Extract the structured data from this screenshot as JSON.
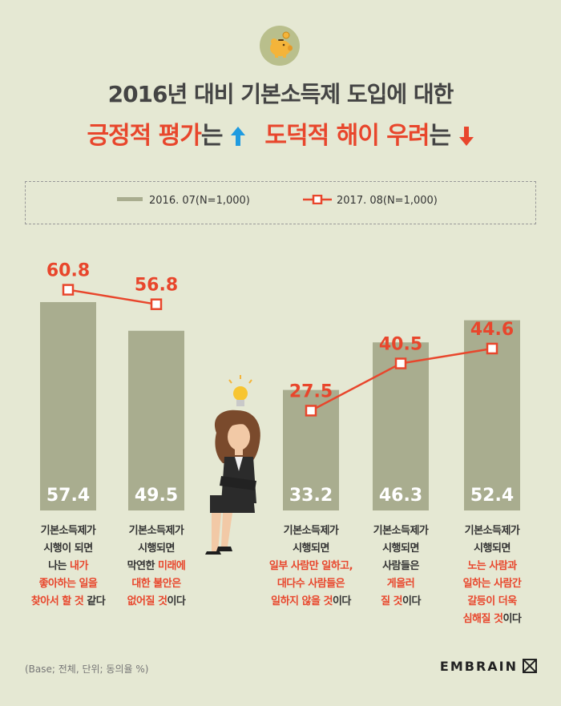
{
  "title_line1": "2016년 대비 기본소득제 도입에 대한",
  "title_line2": {
    "part1": "긍정적 평가",
    "part2": "는",
    "part3": "도덕적 해이 우려",
    "part4": "는"
  },
  "legend": {
    "bar": "2016. 07(N=1,000)",
    "line": "2017. 08(N=1,000)"
  },
  "colors": {
    "bar": "#a9ad8f",
    "line": "#e8462c",
    "background": "#e5e8d3"
  },
  "chart_data": {
    "type": "bar",
    "categories": [
      "기본소득제가 시행이 되면 나는 내가 좋아하는 일을 찾아서 할 것 같다",
      "기본소득제가 시행되면 막연한 미래에 대한 불안은 없어질 것이다",
      "기본소득제가 시행되면 일부 사람만 일하고, 대다수 사람들은 일하지 않을 것이다",
      "기본소득제가 시행되면 사람들은 게을러 질 것이다",
      "기본소득제가 시행되면 노는 사람과 일하는 사람간 갈등이 더욱 심해질 것이다"
    ],
    "series": [
      {
        "name": "2016. 07(N=1,000)",
        "type": "bar",
        "values": [
          57.4,
          49.5,
          33.2,
          46.3,
          52.4
        ],
        "labels": [
          "57.4",
          "49.5",
          "33.2",
          "46.3",
          "52.4"
        ]
      },
      {
        "name": "2017. 08(N=1,000)",
        "type": "line",
        "values": [
          60.8,
          56.8,
          27.5,
          40.5,
          44.6
        ],
        "labels": [
          "60.8",
          "56.8",
          "27.5",
          "40.5",
          "44.6"
        ]
      }
    ],
    "groups": [
      [
        0,
        1
      ],
      [
        2,
        3,
        4
      ]
    ],
    "unit": "%"
  },
  "captions": [
    [
      [
        [
          "기본소득제가",
          false
        ]
      ],
      [
        [
          "시행이 되면",
          false
        ]
      ],
      [
        [
          "나는 ",
          false
        ],
        [
          "내가",
          true
        ]
      ],
      [
        [
          "좋아하는 일을",
          true
        ]
      ],
      [
        [
          "찾아서 할 것",
          true
        ],
        [
          " 같다",
          false
        ]
      ]
    ],
    [
      [
        [
          "기본소득제가",
          false
        ]
      ],
      [
        [
          "시행되면",
          false
        ]
      ],
      [
        [
          "막연한 ",
          false
        ],
        [
          "미래에",
          true
        ]
      ],
      [
        [
          "대한 불안은",
          true
        ]
      ],
      [
        [
          "없어질 것",
          true
        ],
        [
          "이다",
          false
        ]
      ]
    ],
    [
      [
        [
          "기본소득제가",
          false
        ]
      ],
      [
        [
          "시행되면",
          false
        ]
      ],
      [
        [
          "일부 사람만 일하고,",
          true
        ]
      ],
      [
        [
          "대다수 사람들은",
          true
        ]
      ],
      [
        [
          "일하지 않을 것",
          true
        ],
        [
          "이다",
          false
        ]
      ]
    ],
    [
      [
        [
          "기본소득제가",
          false
        ]
      ],
      [
        [
          "시행되면",
          false
        ]
      ],
      [
        [
          "사람들은",
          false
        ]
      ],
      [
        [
          "게을러",
          true
        ]
      ],
      [
        [
          "질 것",
          true
        ],
        [
          "이다",
          false
        ]
      ]
    ],
    [
      [
        [
          "기본소득제가",
          false
        ]
      ],
      [
        [
          "시행되면",
          false
        ]
      ],
      [
        [
          "노는 사람과",
          true
        ]
      ],
      [
        [
          "일하는 사람간",
          true
        ]
      ],
      [
        [
          "갈등이 더욱",
          true
        ]
      ],
      [
        [
          "심해질 것",
          true
        ],
        [
          "이다",
          false
        ]
      ]
    ]
  ],
  "footnote": "(Base; 전체, 단위; 동의율 %)",
  "brand": "EMBRAIN",
  "icons": {
    "top": "piggy-bank-icon",
    "up": "arrow-up-icon",
    "down": "arrow-down-icon",
    "idea": "lightbulb-icon"
  }
}
